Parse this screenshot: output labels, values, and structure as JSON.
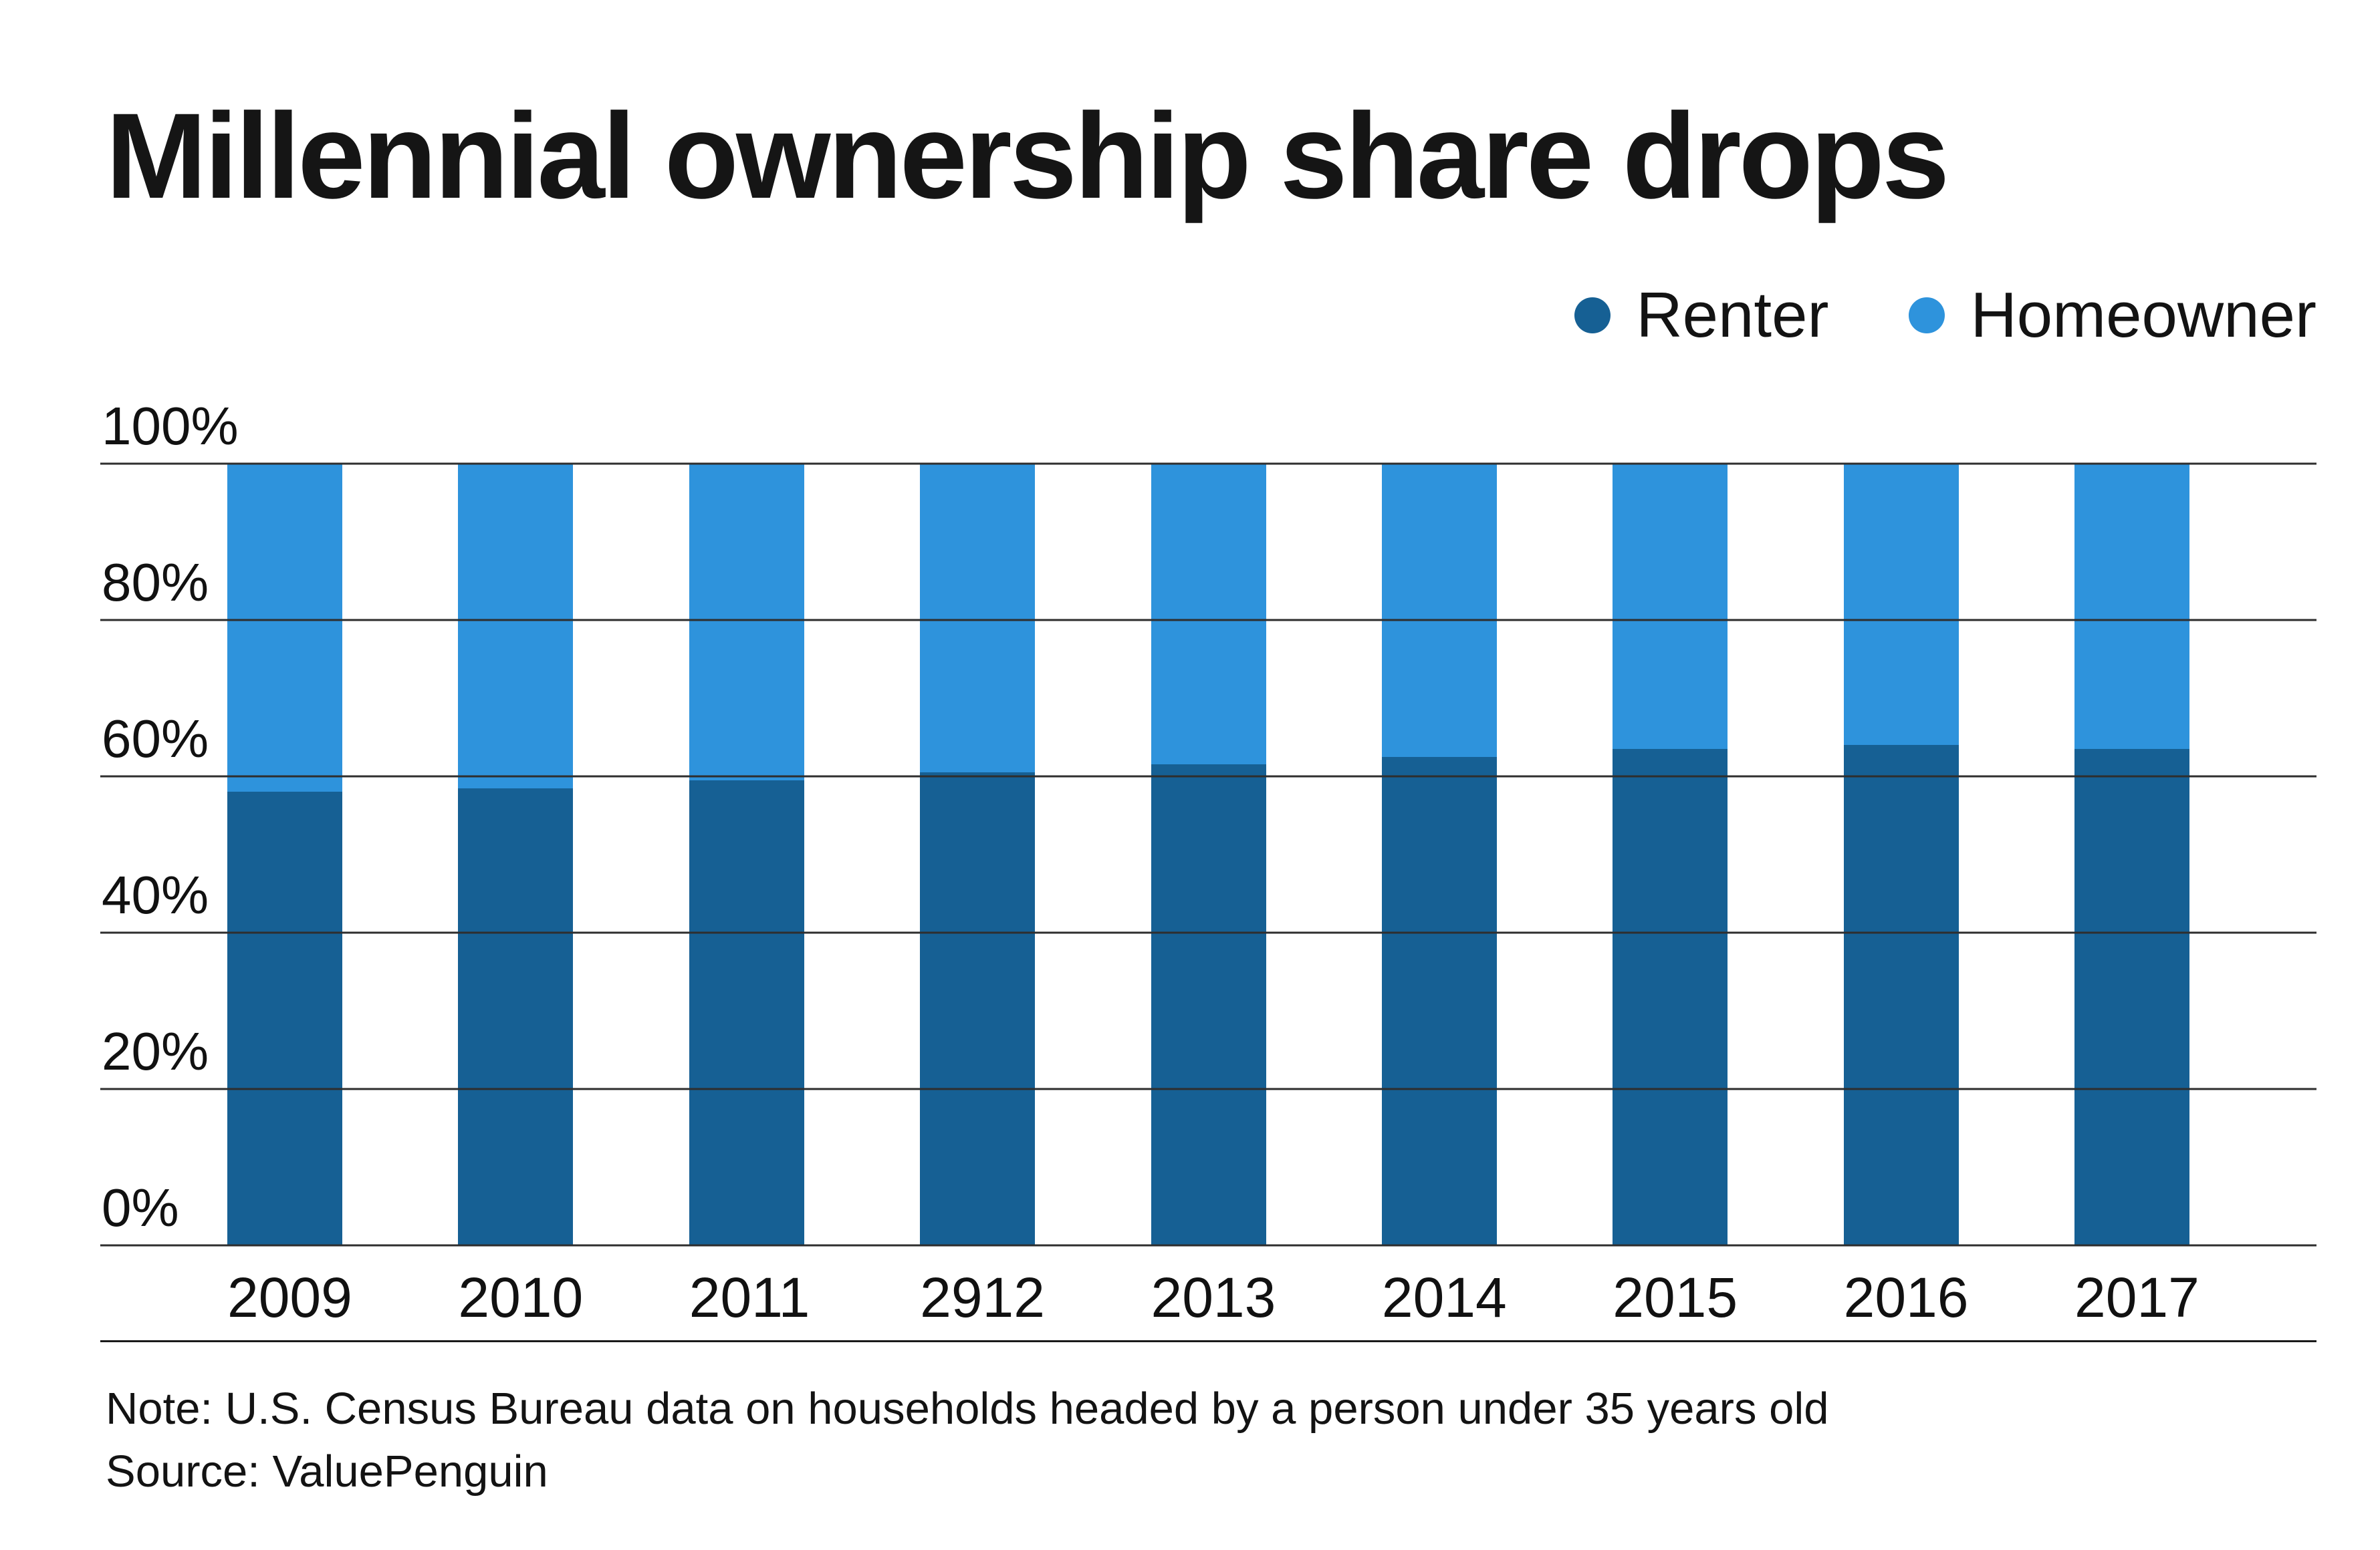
{
  "title": "Millennial ownership share drops",
  "legend": [
    {
      "label": "Renter",
      "color": "#166094"
    },
    {
      "label": "Homeowner",
      "color": "#2e93dc"
    }
  ],
  "note": {
    "line1": "Note: U.S. Census Bureau data on households headed by a person under 35 years old",
    "line2": "Source: ValuePenguin"
  },
  "chart_data": {
    "type": "bar",
    "stacked": true,
    "title": "Millennial ownership share drops",
    "categories": [
      "2009",
      "2010",
      "2011",
      "2912",
      "2013",
      "2014",
      "2015",
      "2016",
      "2017"
    ],
    "series": [
      {
        "name": "Renter",
        "color": "#166094",
        "values": [
          58,
          58.5,
          59.5,
          60.5,
          61.5,
          62.5,
          63.5,
          64,
          63.5
        ]
      },
      {
        "name": "Homeowner",
        "color": "#2e93dc",
        "values": [
          42,
          41.5,
          40.5,
          39.5,
          38.5,
          37.5,
          36.5,
          36,
          36.5
        ]
      }
    ],
    "xlabel": "",
    "ylabel": "",
    "ylim": [
      0,
      100
    ],
    "yticks": [
      0,
      20,
      40,
      60,
      80,
      100
    ],
    "ytick_format": "{v}%",
    "grid": true,
    "gridlines_over_bars": true,
    "legend_position": "top-right"
  }
}
